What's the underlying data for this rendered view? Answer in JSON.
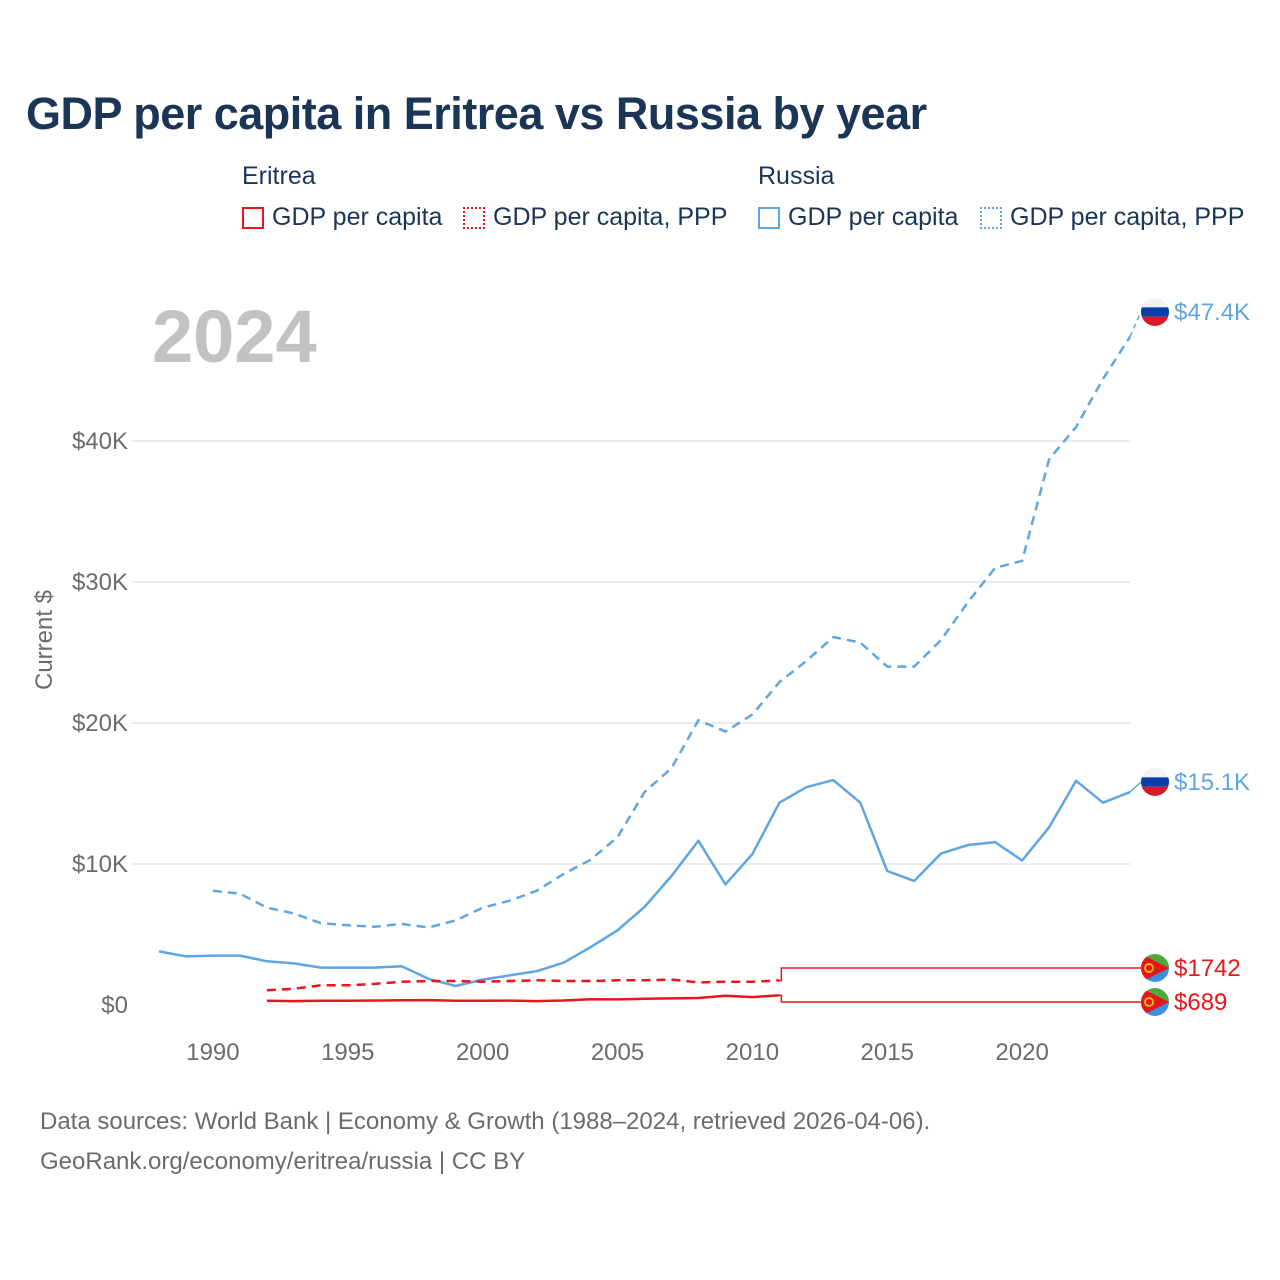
{
  "title": "GDP per capita in Eritrea vs Russia by year",
  "legend": {
    "groups": [
      {
        "country": "Eritrea",
        "items": [
          {
            "label": "GDP per capita",
            "color": "#e8161b",
            "style": "solid"
          },
          {
            "label": "GDP per capita, PPP",
            "color": "#e8161b",
            "style": "dotted"
          }
        ]
      },
      {
        "country": "Russia",
        "items": [
          {
            "label": "GDP per capita",
            "color": "#5ea6e3",
            "style": "solid"
          },
          {
            "label": "GDP per capita, PPP",
            "color": "#5ea6e3",
            "style": "dotted"
          }
        ]
      }
    ]
  },
  "footer": {
    "line1": "Data sources: World Bank | Economy & Growth (1988–2024, retrieved 2026-04-06).",
    "line2": "GeoRank.org/economy/eritrea/russia | CC BY"
  },
  "chart_data": {
    "type": "line",
    "year_label": "2024",
    "ylabel": "Current $",
    "xlim": [
      1987,
      2024
    ],
    "ylim": [
      0,
      50000
    ],
    "x_ticks": [
      1990,
      1995,
      2000,
      2005,
      2010,
      2015,
      2020
    ],
    "x_tick_labels": [
      "1990",
      "1995",
      "2000",
      "2005",
      "2010",
      "2015",
      "2020"
    ],
    "y_ticks": [
      0,
      10000,
      20000,
      30000,
      40000
    ],
    "y_tick_labels": [
      "$0",
      "$10K",
      "$20K",
      "$30K",
      "$40K"
    ],
    "gridlines": true,
    "series": [
      {
        "name": "Russia — GDP per capita, PPP",
        "country": "Russia",
        "color": "#5ea6e3",
        "dash": "dashed",
        "end_label": "$47.4K",
        "end_value": 47400,
        "x": [
          1990,
          1991,
          1992,
          1993,
          1994,
          1995,
          1996,
          1997,
          1998,
          1999,
          2000,
          2001,
          2002,
          2003,
          2004,
          2005,
          2006,
          2007,
          2008,
          2009,
          2010,
          2011,
          2012,
          2013,
          2014,
          2015,
          2016,
          2017,
          2018,
          2019,
          2020,
          2021,
          2022,
          2023,
          2024
        ],
        "values": [
          8100,
          7900,
          6900,
          6500,
          5800,
          5650,
          5550,
          5750,
          5500,
          6000,
          6900,
          7400,
          8100,
          9300,
          10300,
          11900,
          15100,
          16800,
          20200,
          19400,
          20600,
          22900,
          24400,
          26100,
          25700,
          24000,
          24000,
          25900,
          28600,
          31000,
          31500,
          38700,
          41000,
          44400,
          47400
        ]
      },
      {
        "name": "Russia — GDP per capita",
        "country": "Russia",
        "color": "#5ea6e3",
        "dash": "solid",
        "end_label": "$15.1K",
        "end_value": 15100,
        "x": [
          1988,
          1989,
          1990,
          1991,
          1992,
          1993,
          1994,
          1995,
          1996,
          1997,
          1998,
          1999,
          2000,
          2001,
          2002,
          2003,
          2004,
          2005,
          2006,
          2007,
          2008,
          2009,
          2010,
          2011,
          2012,
          2013,
          2014,
          2015,
          2016,
          2017,
          2018,
          2019,
          2020,
          2021,
          2022,
          2023,
          2024
        ],
        "values": [
          3800,
          3450,
          3500,
          3500,
          3100,
          2950,
          2650,
          2650,
          2650,
          2750,
          1850,
          1350,
          1800,
          2100,
          2400,
          3000,
          4100,
          5300,
          6950,
          9150,
          11650,
          8550,
          10700,
          14350,
          15450,
          15950,
          14350,
          9500,
          8800,
          10750,
          11350,
          11550,
          10250,
          12600,
          15900,
          14350,
          15100
        ]
      },
      {
        "name": "Eritrea — GDP per capita, PPP",
        "country": "Eritrea",
        "color": "#e8161b",
        "dash": "dashed",
        "end_label": "$1742",
        "end_value": 1742,
        "x": [
          1992,
          1993,
          1994,
          1995,
          1996,
          1997,
          1998,
          1999,
          2000,
          2001,
          2002,
          2003,
          2004,
          2005,
          2006,
          2007,
          2008,
          2009,
          2010,
          2011
        ],
        "values": [
          1050,
          1150,
          1400,
          1400,
          1500,
          1650,
          1700,
          1700,
          1650,
          1700,
          1750,
          1700,
          1700,
          1750,
          1750,
          1800,
          1600,
          1650,
          1650,
          1742
        ]
      },
      {
        "name": "Eritrea — GDP per capita",
        "country": "Eritrea",
        "color": "#e8161b",
        "dash": "solid",
        "end_label": "$689",
        "end_value": 689,
        "x": [
          1992,
          1993,
          1994,
          1995,
          1996,
          1997,
          1998,
          1999,
          2000,
          2001,
          2002,
          2003,
          2004,
          2005,
          2006,
          2007,
          2008,
          2009,
          2010,
          2011
        ],
        "values": [
          300,
          280,
          300,
          300,
          320,
          330,
          350,
          300,
          300,
          310,
          280,
          320,
          410,
          400,
          440,
          470,
          500,
          650,
          560,
          689
        ]
      }
    ]
  }
}
